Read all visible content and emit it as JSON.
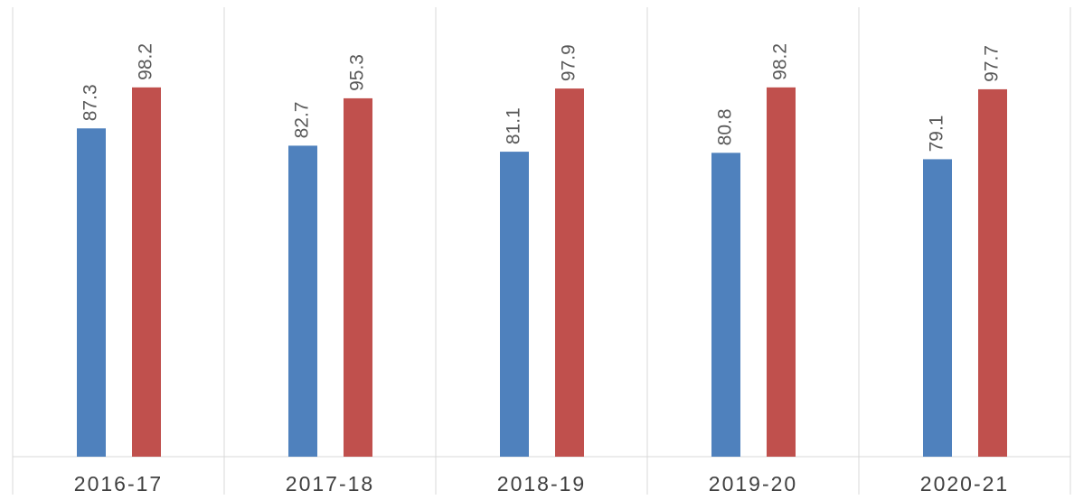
{
  "chart_data": {
    "type": "bar",
    "categories": [
      "2016-17",
      "2017-18",
      "2018-19",
      "2019-20",
      "2020-21"
    ],
    "series": [
      {
        "color": "#4f81bd",
        "values": [
          87.3,
          82.7,
          81.1,
          80.8,
          79.1
        ]
      },
      {
        "color": "#c0504d",
        "values": [
          98.2,
          95.3,
          97.9,
          98.2,
          97.7
        ]
      }
    ],
    "ylim": [
      0,
      120
    ]
  }
}
